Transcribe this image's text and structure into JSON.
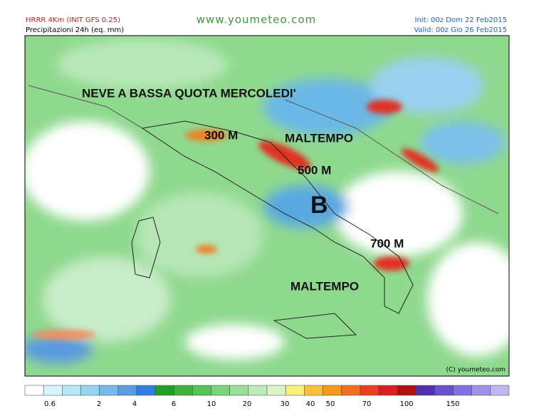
{
  "header": {
    "model": "HRRR 4Km (INIT GFS 0.25)",
    "field": "Precipitazioni 24h (eq. mm)",
    "site": "www.youmeteo.com",
    "init": "Init: 00z Dom 22 Feb2015",
    "valid": "Valid: 00z Gio  26 Feb2015"
  },
  "annotations": [
    "NEVE A BASSA QUOTA MERCOLEDI'",
    "300 M",
    "MALTEMPO",
    "500 M",
    "B",
    "700 M",
    "MALTEMPO"
  ],
  "copyright": "(C) youmeteo.com",
  "legend": {
    "labels": [
      0.6,
      2,
      4,
      6,
      10,
      20,
      30,
      40,
      50,
      70,
      100,
      150
    ]
  }
}
